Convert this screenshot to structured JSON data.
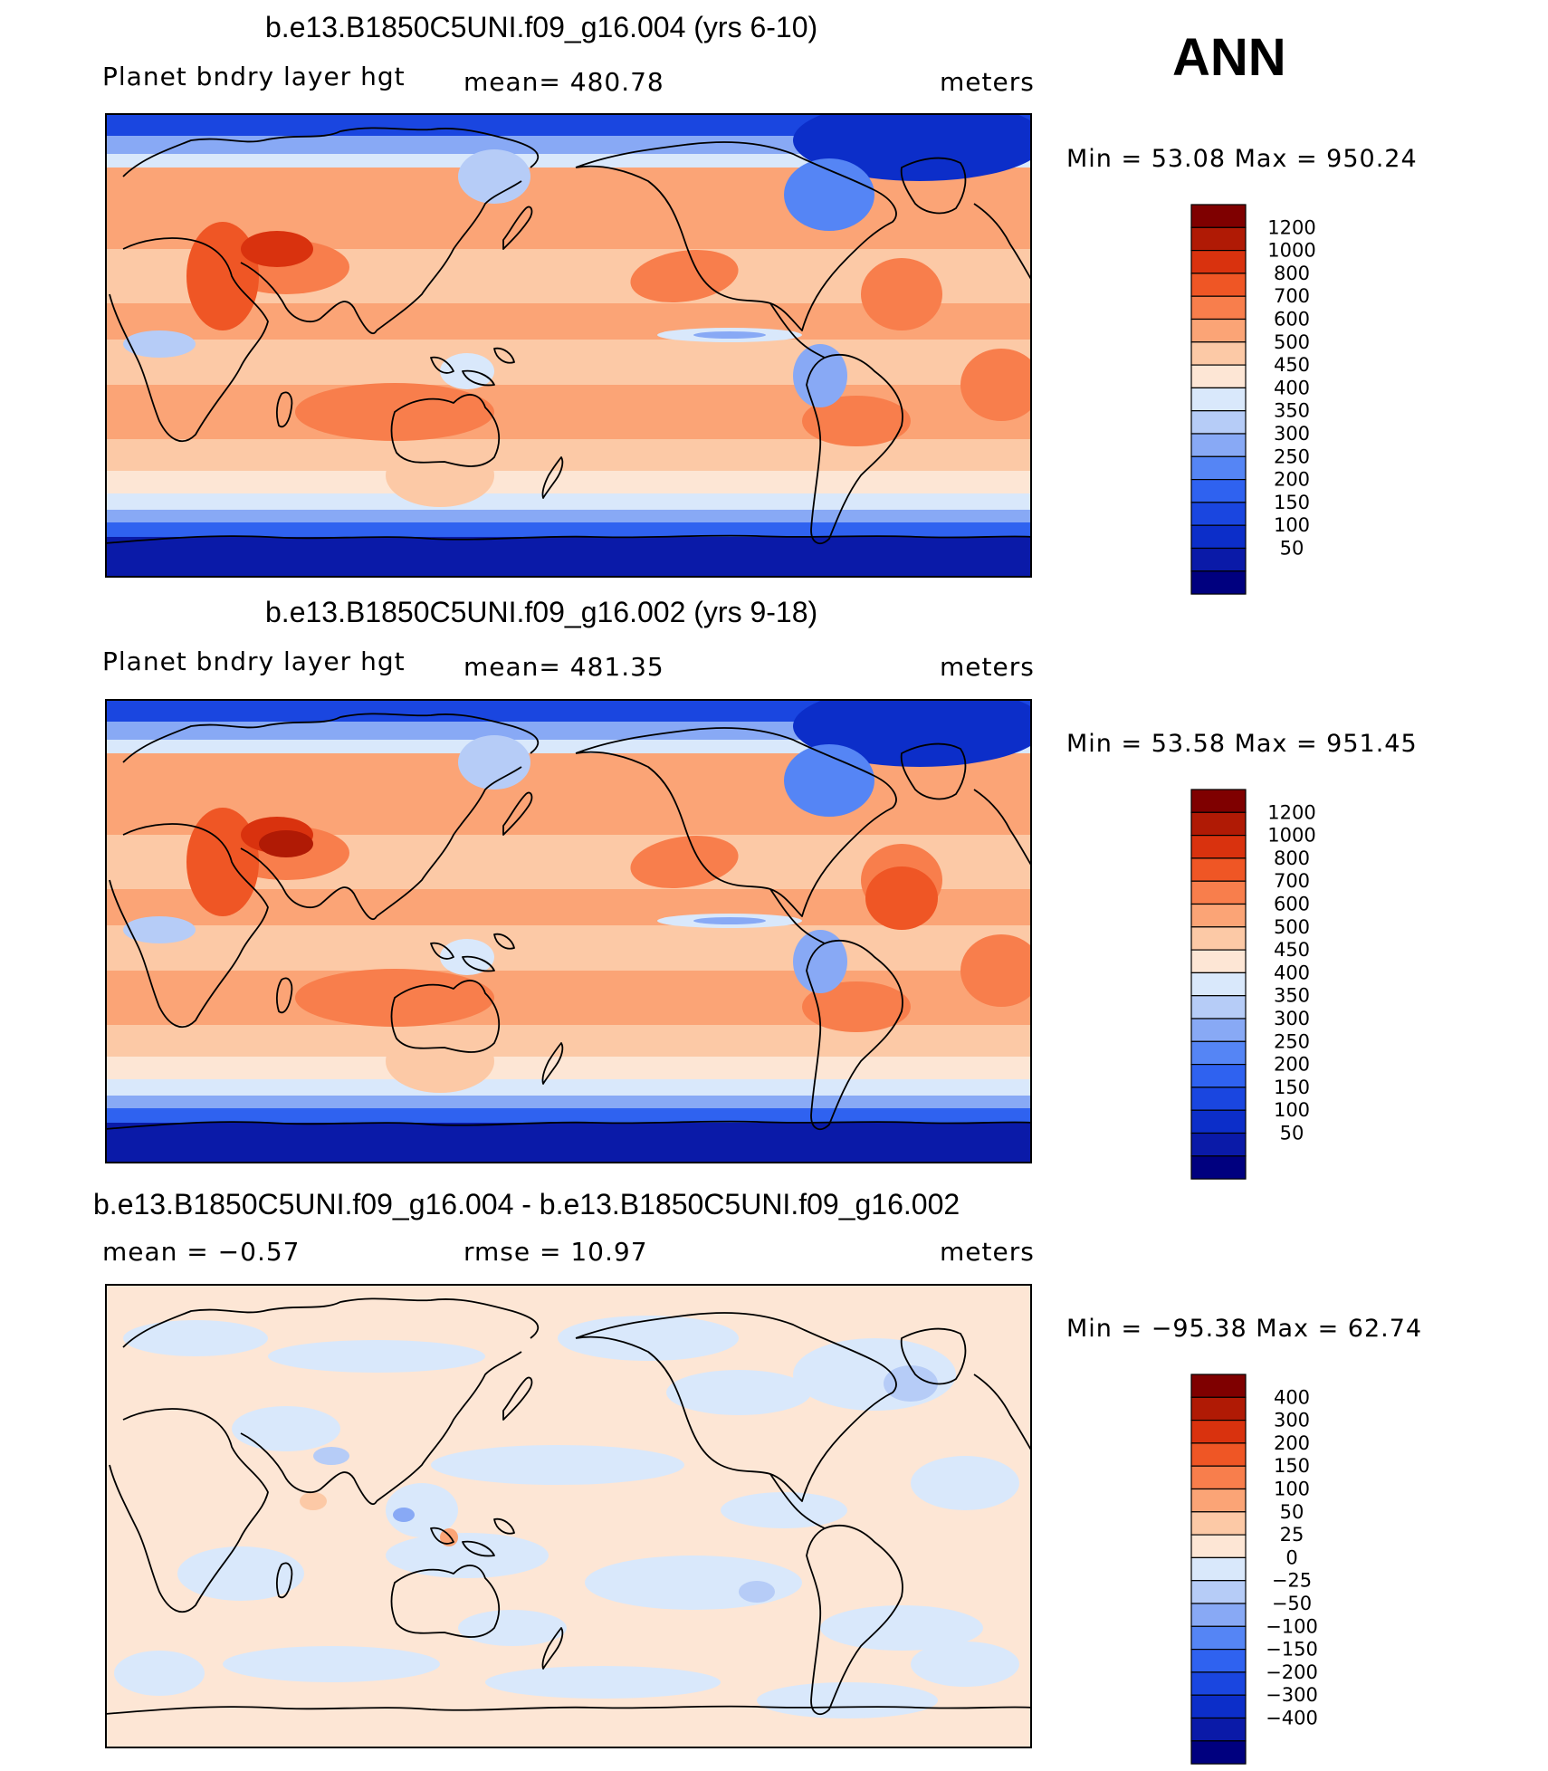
{
  "season": "ANN",
  "colors": {
    "abs_scale": [
      "#00007f",
      "#0a1aa8",
      "#0c2ec9",
      "#1a46e0",
      "#2f62f0",
      "#5585f5",
      "#88a9f5",
      "#b6ccf7",
      "#d9e8fb",
      "#fde6d5",
      "#fcc9a6",
      "#fba476",
      "#f87e4c",
      "#ef5625",
      "#d9320e",
      "#b01a05",
      "#7f0000"
    ],
    "diff_scale": [
      "#00007f",
      "#0a1aa8",
      "#0c2ec9",
      "#1a46e0",
      "#2f62f0",
      "#5585f5",
      "#88a9f5",
      "#b6ccf7",
      "#d9e8fb",
      "#fde6d5",
      "#fcc9a6",
      "#fba476",
      "#f87e4c",
      "#ef5625",
      "#d9320e",
      "#b01a05",
      "#7f0000"
    ]
  },
  "panels": [
    {
      "title": "b.e13.B1850C5UNI.f09_g16.004 (yrs 6-10)",
      "variable": "Planet bndry layer hgt",
      "stat_left": "mean=  480.78",
      "stat_mid": "",
      "units": "meters",
      "minmax": "Min =   53.08  Max  =  950.24",
      "levels": [
        "1200",
        "1000",
        "800",
        "700",
        "600",
        "500",
        "450",
        "400",
        "350",
        "300",
        "250",
        "200",
        "150",
        "100",
        "50"
      ],
      "style": "abs"
    },
    {
      "title": "b.e13.B1850C5UNI.f09_g16.002 (yrs 9-18)",
      "variable": "Planet bndry layer hgt",
      "stat_left": "mean=  481.35",
      "stat_mid": "",
      "units": "meters",
      "minmax": "Min =   53.58  Max  =  951.45",
      "levels": [
        "1200",
        "1000",
        "800",
        "700",
        "600",
        "500",
        "450",
        "400",
        "350",
        "300",
        "250",
        "200",
        "150",
        "100",
        "50"
      ],
      "style": "abs"
    },
    {
      "title": "b.e13.B1850C5UNI.f09_g16.004 - b.e13.B1850C5UNI.f09_g16.002",
      "variable": "mean  =   −0.57",
      "stat_left": "rmse  =    10.97",
      "stat_mid": "",
      "units": "meters",
      "minmax": "Min  =  −95.38  Max  =    62.74",
      "levels": [
        "400",
        "300",
        "200",
        "150",
        "100",
        "50",
        "25",
        "0",
        "−25",
        "−50",
        "−100",
        "−150",
        "−200",
        "−300",
        "−400"
      ],
      "style": "diff"
    }
  ]
}
